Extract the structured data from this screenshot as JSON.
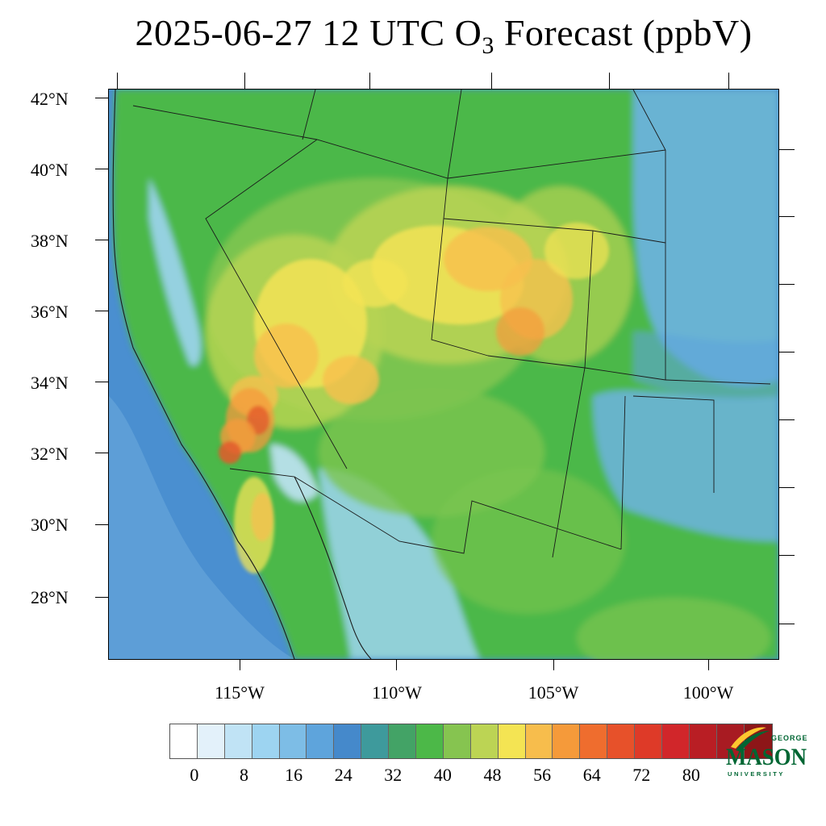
{
  "title": {
    "prefix": "2025-06-27 12 UTC O",
    "subscript": "3",
    "suffix": " Forecast (ppbV)"
  },
  "map": {
    "lat_labels": [
      "42°N",
      "40°N",
      "38°N",
      "36°N",
      "34°N",
      "32°N",
      "30°N",
      "28°N"
    ],
    "lon_labels": [
      "115°W",
      "110°W",
      "105°W",
      "100°W"
    ],
    "field": "O3 surface concentration",
    "colors": {
      "ocean_base": "#4a8fd0",
      "ocean_light": "#6aa8dc",
      "plains": "#6db3e2",
      "green": "#4cb848",
      "green_light": "#7cc450",
      "yellow_green": "#b6d352",
      "yellow": "#f3e355",
      "orange_light": "#f7bf4e",
      "orange": "#f59a3c",
      "red": "#e45a2c"
    }
  },
  "colorbar": {
    "tick_labels": [
      "0",
      "8",
      "16",
      "24",
      "32",
      "40",
      "48",
      "56",
      "64",
      "72",
      "80"
    ],
    "swatches": [
      "#ffffff",
      "#e3f1fa",
      "#c0e3f5",
      "#9dd4f1",
      "#7dbde6",
      "#5ea4dc",
      "#4589cb",
      "#3e9a9c",
      "#43a366",
      "#4cb848",
      "#86c450",
      "#bcd454",
      "#f4e453",
      "#f7bd4c",
      "#f59a3a",
      "#ef6d2e",
      "#e7512a",
      "#de3a28",
      "#d1262a",
      "#b91e24",
      "#a81b22",
      "#8d1618"
    ]
  },
  "logo": {
    "line1": "GEORGE",
    "line2": "MASON",
    "line3": "UNIVERSITY",
    "brand_green": "#006633",
    "brand_gold": "#fdc82f"
  }
}
